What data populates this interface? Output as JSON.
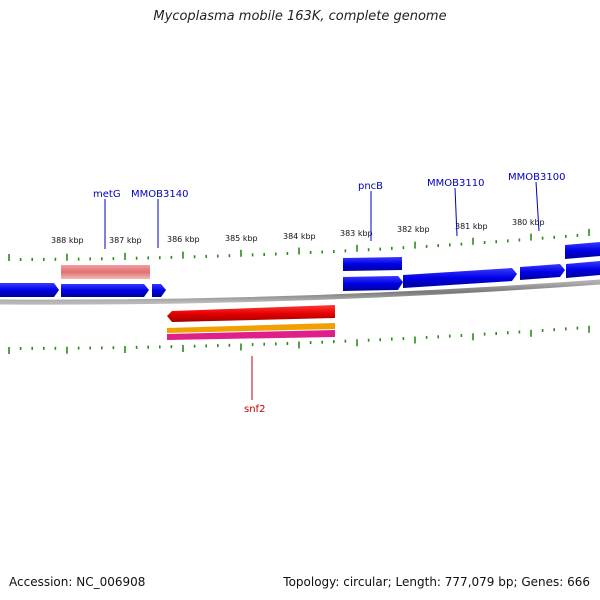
{
  "title": "Mycoplasma mobile 163K, complete genome",
  "footer": {
    "accession": "Accession: NC_006908",
    "topology": "Topology: circular; Length: 777,079 bp; Genes: 666"
  },
  "scale_labels": [
    "388 kbp",
    "387 kbp",
    "386 kbp",
    "385 kbp",
    "384 kbp",
    "383 kbp",
    "382 kbp",
    "381 kbp",
    "380 kbp"
  ],
  "gene_labels": [
    "metG",
    "MMOB3140",
    "pncB",
    "MMOB3110",
    "MMOB3100",
    "snf2"
  ],
  "colors": {
    "forward_gene": "#0000e6",
    "reverse_gene": "#e60000",
    "rna_feature": "#e88080",
    "orange_feature": "#f0a000",
    "magenta_feature": "#e0208a",
    "tick": "#2a8a1a",
    "backbone": "#808080",
    "forward_label": "#0000c0",
    "reverse_label": "#c00000"
  }
}
